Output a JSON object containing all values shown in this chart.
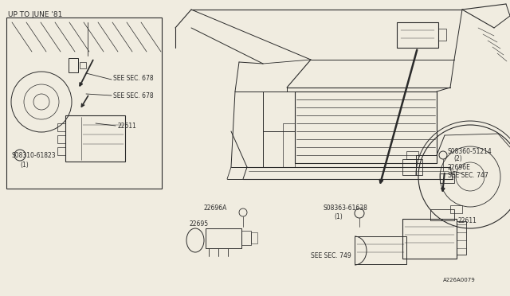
{
  "bg_color": "#f0ece0",
  "line_color": "#2a2a2a",
  "text_color": "#2a2a2a",
  "font_size": 5.5,
  "font_family": "DejaVu Sans",
  "inset_label": "UP TO JUNE '81",
  "label_inset_sec678_1": "SEE SEC. 678",
  "label_inset_sec678_2": "SEE SEC. 678",
  "label_inset_22611": "22611",
  "label_inset_screw": "S08310-61823",
  "label_inset_qty": "(1)",
  "label_screw1_part": "S08360-51214",
  "label_screw1_qty": "(2)",
  "label_22696E": "22696E",
  "label_sec747": "SEE SEC. 747",
  "label_22696A": "22696A",
  "label_22695": "22695",
  "label_screw2_part": "S08363-61638",
  "label_screw2_qty": "(1)",
  "label_sec749": "SEE SEC. 749",
  "label_22611_main": "22611",
  "label_fig": "A226A0079"
}
